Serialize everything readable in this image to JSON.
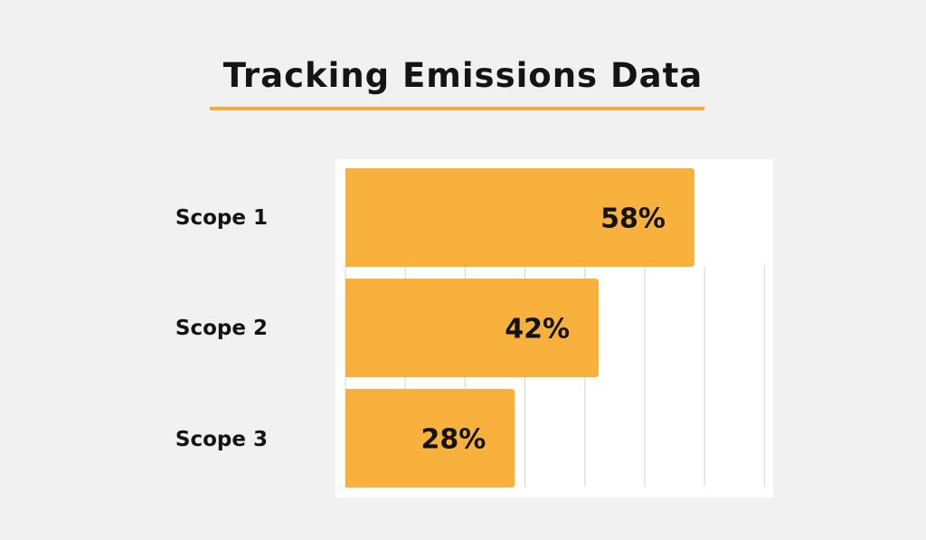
{
  "header": {
    "title": "Tracking Emissions Data"
  },
  "colors": {
    "background": "#f1f1f1",
    "bar": "#f8b13d",
    "accent_underline": "#f5ac3c",
    "gridline": "#d4d4d4",
    "text": "#141414"
  },
  "chart_data": {
    "type": "bar",
    "orientation": "horizontal",
    "title": "Tracking Emissions Data",
    "xlabel": "",
    "ylabel": "",
    "categories": [
      "Scope 1",
      "Scope 2",
      "Scope 3"
    ],
    "values": [
      58,
      42,
      28
    ],
    "data_labels": [
      "58%",
      "42%",
      "28%"
    ],
    "unit": "%",
    "xlim": [
      0,
      70
    ],
    "grid": true,
    "legend": "none"
  }
}
